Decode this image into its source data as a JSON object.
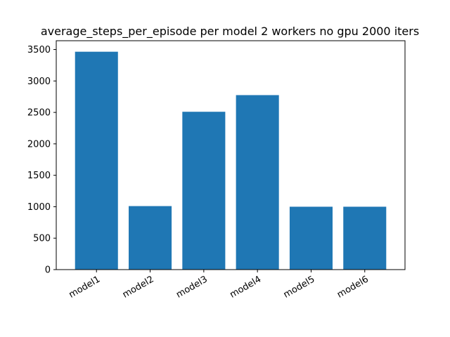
{
  "chart_data": {
    "type": "bar",
    "title": "average_steps_per_episode per model 2 workers no gpu 2000 iters",
    "categories": [
      "model1",
      "model2",
      "model3",
      "model4",
      "model5",
      "model6"
    ],
    "values": [
      3465,
      1010,
      2510,
      2775,
      1000,
      1000
    ],
    "xlabel": "",
    "ylabel": "",
    "ylim": [
      0,
      3640
    ],
    "yticks": [
      0,
      500,
      1000,
      1500,
      2000,
      2500,
      3000,
      3500
    ],
    "bar_color": "#1f77b4",
    "grid": false,
    "x_tick_rotation_deg": -30
  }
}
